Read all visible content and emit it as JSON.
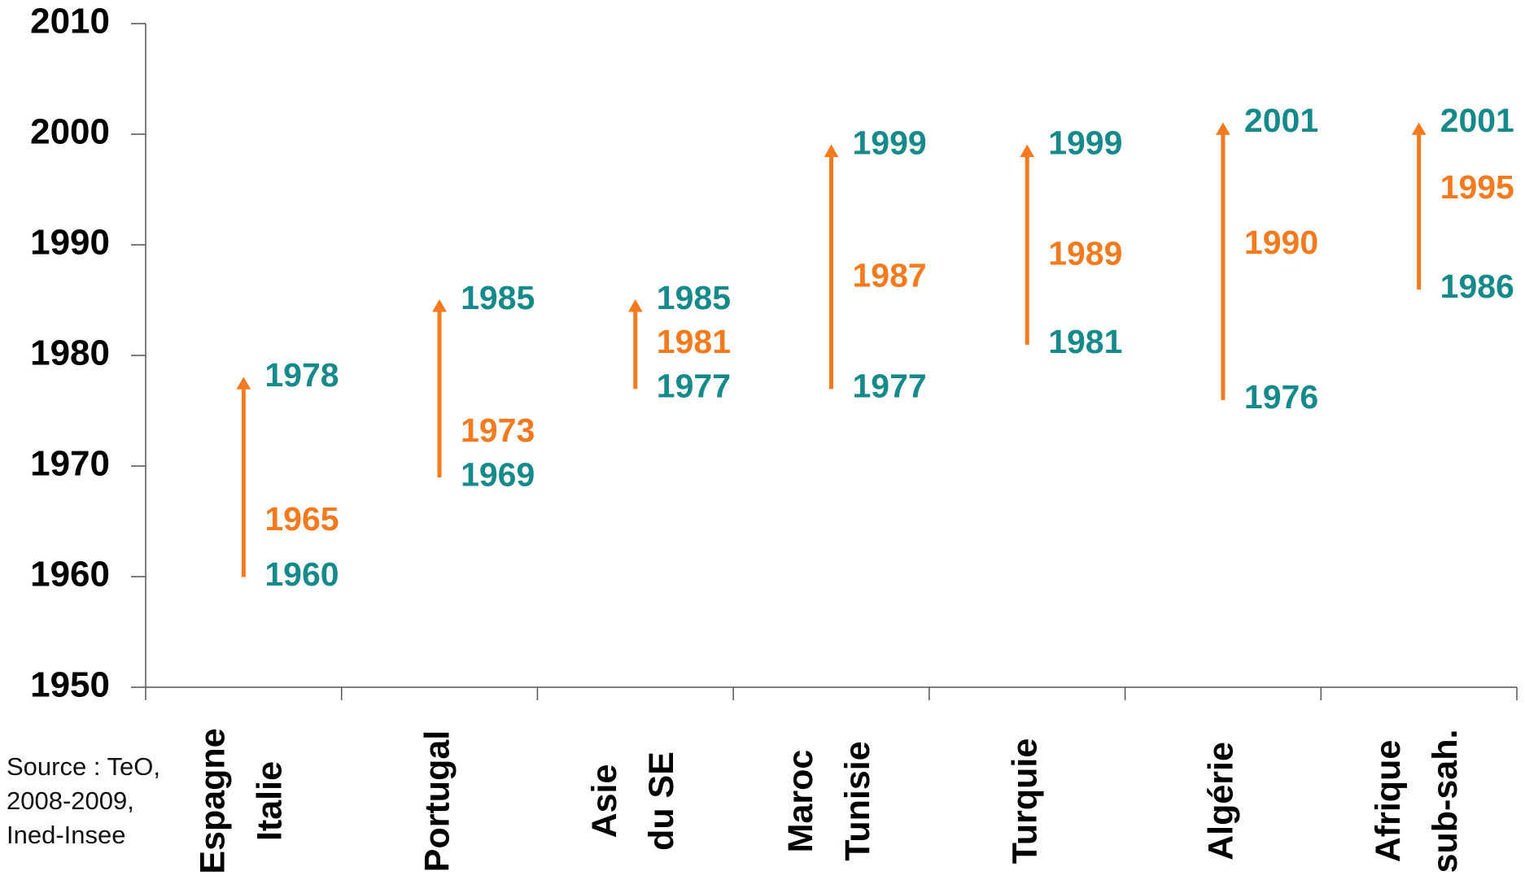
{
  "chart_data": {
    "type": "arrow-range",
    "categories": [
      [
        "Espagne",
        "Italie"
      ],
      [
        "Portugal"
      ],
      [
        "Asie",
        "du SE"
      ],
      [
        "Maroc",
        "Tunisie"
      ],
      [
        "Turquie"
      ],
      [
        "Algérie"
      ],
      [
        "Afrique",
        "sub-sah."
      ]
    ],
    "series": [
      {
        "color": "#168a8a",
        "values": [
          1960,
          1969,
          1977,
          1977,
          1981,
          1976,
          1986
        ]
      },
      {
        "color": "#f47a20",
        "values": [
          1965,
          1973,
          1981,
          1987,
          1989,
          1990,
          1995
        ]
      },
      {
        "color": "#168a8a",
        "values": [
          1978,
          1985,
          1985,
          1999,
          1999,
          2001,
          2001
        ]
      }
    ],
    "arrow_color": "#f47a20",
    "ylim": [
      1950,
      2010
    ],
    "yticks": [
      1950,
      1960,
      1970,
      1980,
      1990,
      2000,
      2010
    ],
    "source": "Source : TeO, 2008-2009, Ined-Insee"
  }
}
